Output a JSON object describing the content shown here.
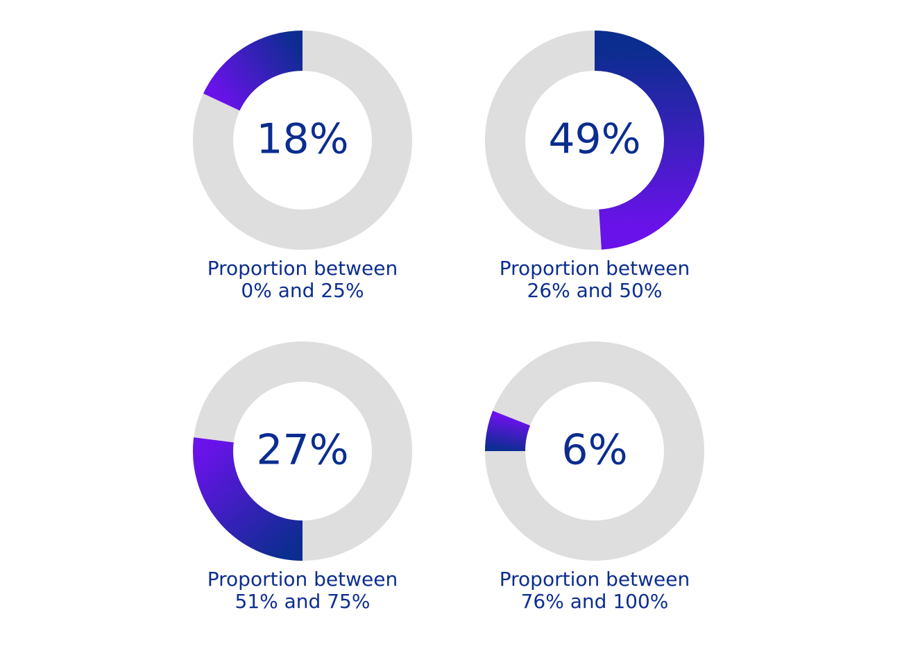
{
  "colors": {
    "track": "#dedede",
    "gradient_dark": "#0b2d8f",
    "gradient_light": "#6a12ea",
    "text": "#0b2d8f"
  },
  "chart_data": [
    {
      "type": "pie",
      "style": "donut",
      "value": 18,
      "center_label": "18%",
      "caption_line1": "Proportion between",
      "caption_line2": "0% and 25%",
      "start_angle_deg": 0,
      "direction": "counterclockwise"
    },
    {
      "type": "pie",
      "style": "donut",
      "value": 49,
      "center_label": "49%",
      "caption_line1": "Proportion between",
      "caption_line2": "26% and 50%",
      "start_angle_deg": 0,
      "direction": "clockwise"
    },
    {
      "type": "pie",
      "style": "donut",
      "value": 27,
      "center_label": "27%",
      "caption_line1": "Proportion between",
      "caption_line2": "51% and 75%",
      "start_angle_deg": 180,
      "direction": "clockwise"
    },
    {
      "type": "pie",
      "style": "donut",
      "value": 6,
      "center_label": "6%",
      "caption_line1": "Proportion between",
      "caption_line2": "76% and 100%",
      "start_angle_deg": 270,
      "direction": "clockwise"
    }
  ]
}
